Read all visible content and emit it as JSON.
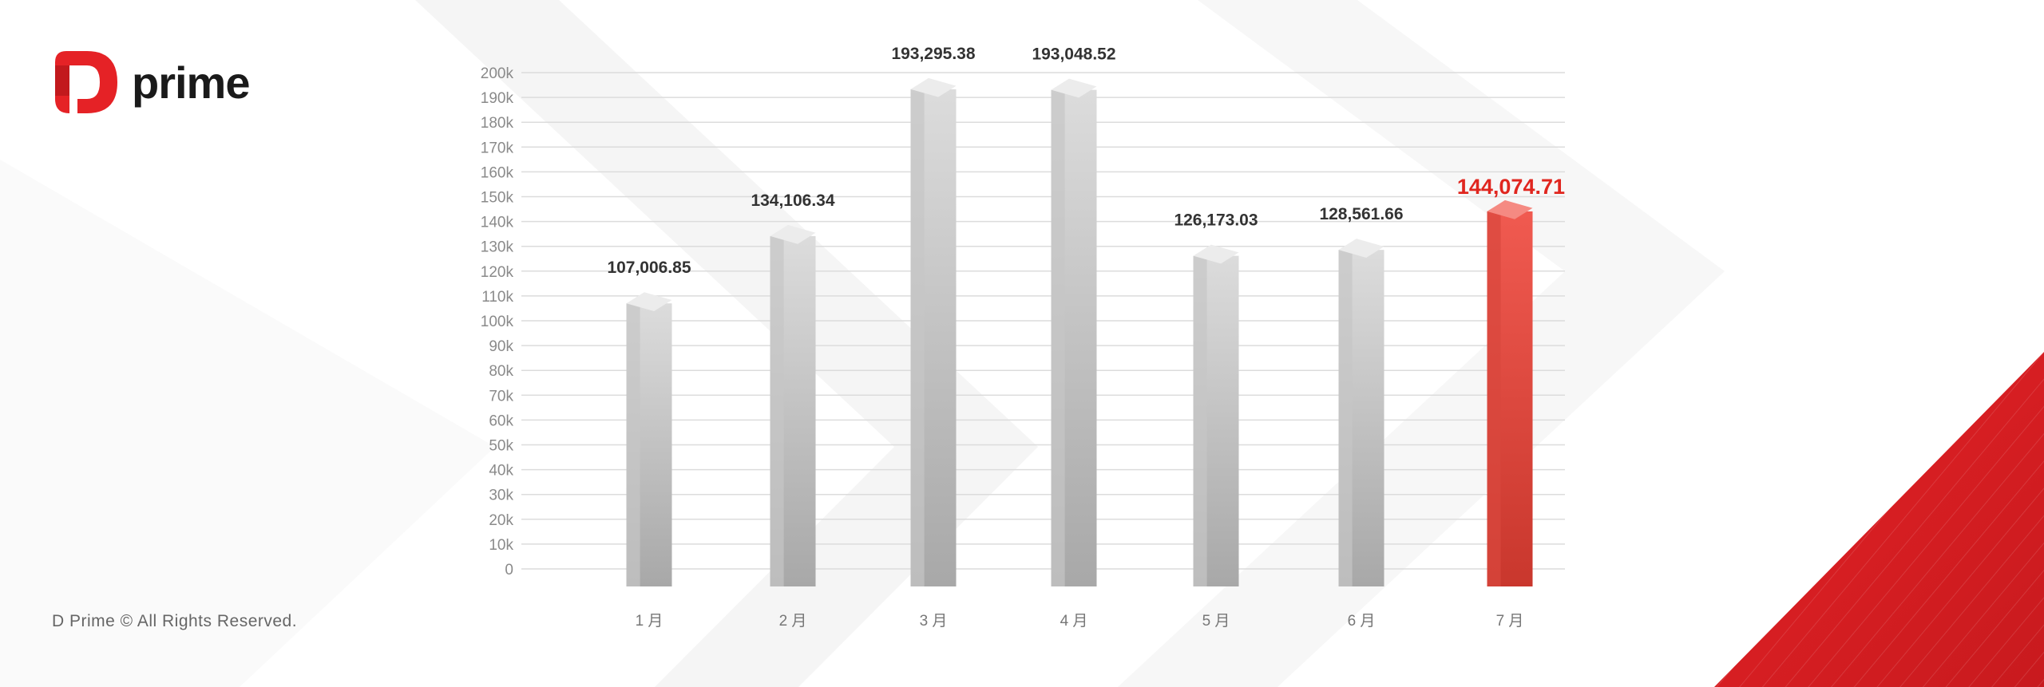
{
  "brand": {
    "logo_text": "prime",
    "copyright": "D Prime © All Rights Reserved."
  },
  "colors": {
    "accent": "#e0261f",
    "bar": "#bdbdbd",
    "grid": "#dcdcdc"
  },
  "chart_data": {
    "type": "bar",
    "title": "",
    "xlabel": "",
    "ylabel": "",
    "categories": [
      "1 月",
      "2 月",
      "3 月",
      "4 月",
      "5 月",
      "6 月",
      "7 月"
    ],
    "values": [
      107006.85,
      134106.34,
      193295.38,
      193048.52,
      126173.03,
      128561.66,
      144074.71
    ],
    "data_labels": [
      "107,006.85",
      "134,106.34",
      "193,295.38",
      "193,048.52",
      "126,173.03",
      "128,561.66",
      "144,074.71"
    ],
    "highlight_index": 6,
    "ylim": [
      0,
      200000
    ],
    "yticks": [
      "0",
      "10k",
      "20k",
      "30k",
      "40k",
      "50k",
      "60k",
      "70k",
      "80k",
      "90k",
      "100k",
      "110k",
      "120k",
      "130k",
      "140k",
      "150k",
      "160k",
      "170k",
      "180k",
      "190k",
      "200k"
    ],
    "grid": true,
    "legend": "none"
  }
}
